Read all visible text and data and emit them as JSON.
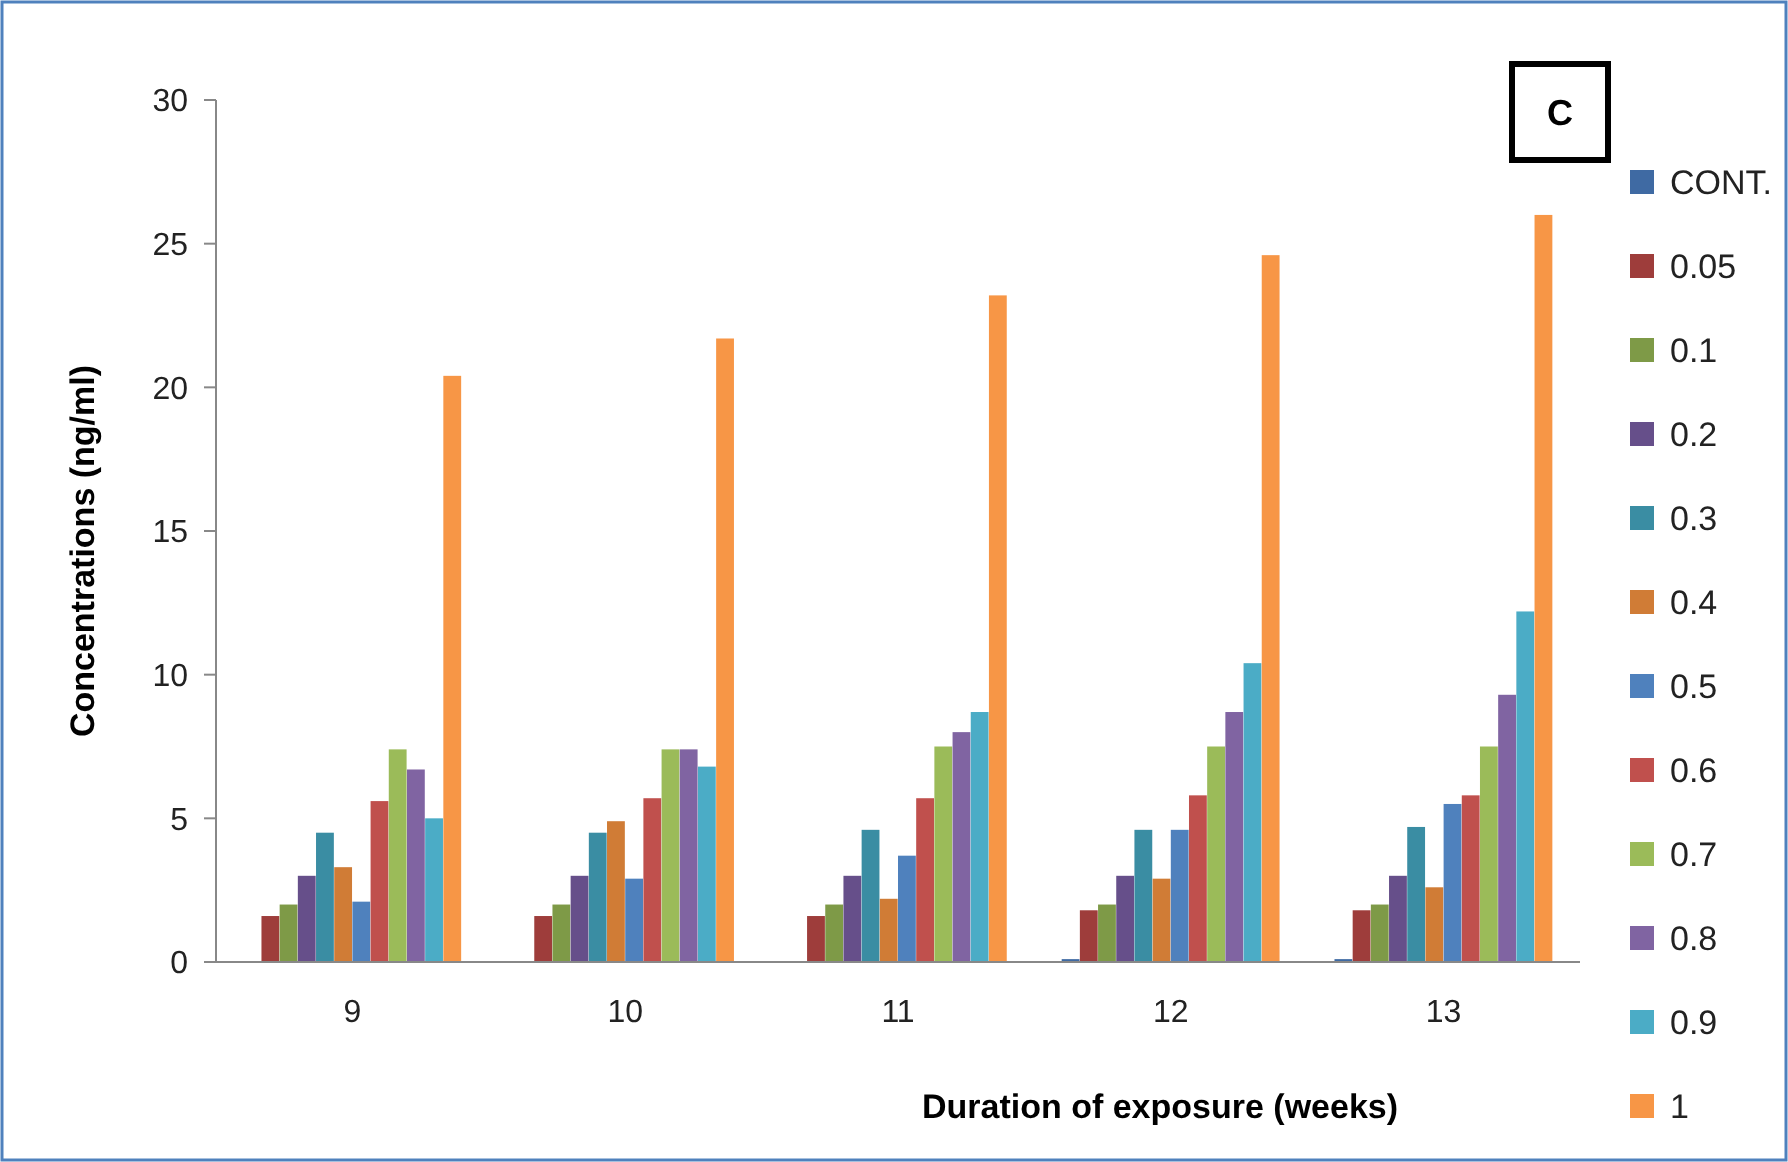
{
  "chart_data": {
    "type": "bar",
    "xlabel": "Duration of exposure (weeks)",
    "ylabel": "Concentrations  (ng/ml)",
    "annotations": [
      "C"
    ],
    "categories": [
      "9",
      "10",
      "11",
      "12",
      "13"
    ],
    "ylim": [
      0,
      30
    ],
    "yticks": [
      0,
      5,
      10,
      15,
      20,
      25,
      30
    ],
    "grid": false,
    "legend": "right",
    "series": [
      {
        "name": "CONT.",
        "color": "#3f6aa3",
        "values": [
          0,
          0,
          0,
          0.1,
          0.1
        ]
      },
      {
        "name": "0.05",
        "color": "#9e3d3b",
        "values": [
          1.6,
          1.6,
          1.6,
          1.8,
          1.8
        ]
      },
      {
        "name": "0.1",
        "color": "#7e9a47",
        "values": [
          2.0,
          2.0,
          2.0,
          2.0,
          2.0
        ]
      },
      {
        "name": "0.2",
        "color": "#664f8a",
        "values": [
          3.0,
          3.0,
          3.0,
          3.0,
          3.0
        ]
      },
      {
        "name": "0.3",
        "color": "#3a8da3",
        "values": [
          4.5,
          4.5,
          4.6,
          4.6,
          4.7
        ]
      },
      {
        "name": "0.4",
        "color": "#d07c36",
        "values": [
          3.3,
          4.9,
          2.2,
          2.9,
          2.6
        ]
      },
      {
        "name": "0.5",
        "color": "#4f81bd",
        "values": [
          2.1,
          2.9,
          3.7,
          4.6,
          5.5
        ]
      },
      {
        "name": "0.6",
        "color": "#c0504d",
        "values": [
          5.6,
          5.7,
          5.7,
          5.8,
          5.8
        ]
      },
      {
        "name": "0.7",
        "color": "#9bbb59",
        "values": [
          7.4,
          7.4,
          7.5,
          7.5,
          7.5
        ]
      },
      {
        "name": "0.8",
        "color": "#8064a2",
        "values": [
          6.7,
          7.4,
          8.0,
          8.7,
          9.3
        ]
      },
      {
        "name": "0.9",
        "color": "#4bacc6",
        "values": [
          5.0,
          6.8,
          8.7,
          10.4,
          12.2
        ]
      },
      {
        "name": "1",
        "color": "#f79646",
        "values": [
          20.4,
          21.7,
          23.2,
          24.6,
          26.0
        ]
      }
    ]
  }
}
